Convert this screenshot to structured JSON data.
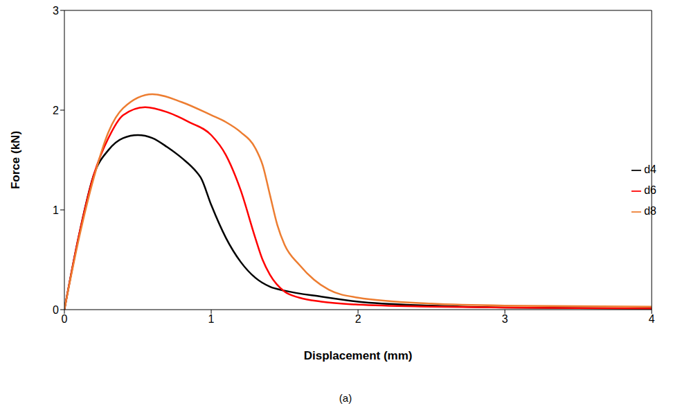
{
  "chart_data": {
    "type": "line",
    "x_label": "Displacement (mm)",
    "y_label": "Force (kN)",
    "annotations": [
      "(a)"
    ],
    "xlim": [
      0,
      4
    ],
    "xticks": [
      0,
      1,
      2,
      3,
      4
    ],
    "ylim": [
      0,
      3
    ],
    "yticks": [
      0,
      1,
      2,
      3
    ],
    "grid": false,
    "legend": "right",
    "series": [
      {
        "name": "d4",
        "color": "#000000",
        "x": [
          0,
          0.1,
          0.2,
          0.3,
          0.4,
          0.5,
          0.6,
          0.7,
          0.8,
          0.9,
          0.93,
          1.0,
          1.1,
          1.2,
          1.3,
          1.4,
          1.5,
          1.75,
          2.0,
          2.5,
          3.0,
          4.0
        ],
        "values": [
          0,
          0.75,
          1.35,
          1.6,
          1.72,
          1.75,
          1.72,
          1.63,
          1.52,
          1.38,
          1.32,
          1.05,
          0.72,
          0.48,
          0.32,
          0.23,
          0.19,
          0.13,
          0.08,
          0.04,
          0.02,
          0.01
        ]
      },
      {
        "name": "d6",
        "color": "#ff0000",
        "x": [
          0,
          0.1,
          0.2,
          0.3,
          0.4,
          0.55,
          0.7,
          0.85,
          1.0,
          1.1,
          1.2,
          1.3,
          1.35,
          1.4,
          1.5,
          1.6,
          1.75,
          2.0,
          2.5,
          3.0,
          4.0
        ],
        "values": [
          0,
          0.75,
          1.35,
          1.72,
          1.95,
          2.03,
          1.98,
          1.88,
          1.75,
          1.55,
          1.2,
          0.72,
          0.5,
          0.35,
          0.18,
          0.12,
          0.08,
          0.05,
          0.03,
          0.02,
          0.01
        ]
      },
      {
        "name": "d8",
        "color": "#ed7d31",
        "x": [
          0,
          0.1,
          0.2,
          0.3,
          0.4,
          0.6,
          0.8,
          1.0,
          1.1,
          1.2,
          1.3,
          1.35,
          1.4,
          1.45,
          1.5,
          1.6,
          1.7,
          1.8,
          2.0,
          2.5,
          3.0,
          4.0
        ],
        "values": [
          0,
          0.72,
          1.32,
          1.78,
          2.02,
          2.16,
          2.08,
          1.95,
          1.88,
          1.78,
          1.62,
          1.45,
          1.15,
          0.85,
          0.65,
          0.45,
          0.3,
          0.2,
          0.12,
          0.06,
          0.04,
          0.03
        ]
      }
    ]
  }
}
